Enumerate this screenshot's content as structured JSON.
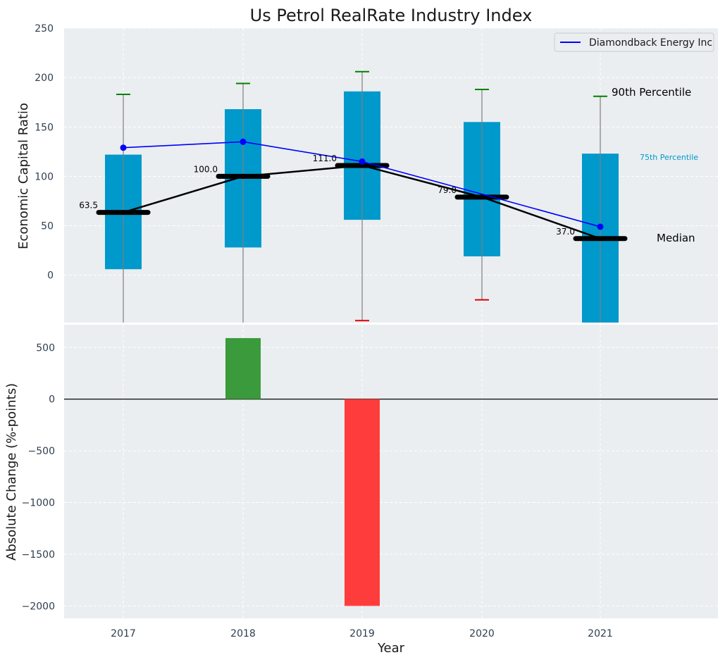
{
  "chart_data": {
    "title": "Us Petrol RealRate Industry Index",
    "xlabel": "Year",
    "categories": [
      "2017",
      "2018",
      "2019",
      "2020",
      "2021"
    ],
    "top_panel": {
      "type": "box",
      "ylabel": "Economic Capital Ratio",
      "ylim": [
        -48,
        250
      ],
      "yticks": [
        0,
        50,
        100,
        150,
        200,
        250
      ],
      "grid": true,
      "boxes": [
        {
          "year": "2017",
          "p10": -48,
          "p25": 6,
          "median": 63.5,
          "p75": 122,
          "p90": 183,
          "p10_color": "#7f7f7f",
          "p90_color": "#008000",
          "median_label": "63.5"
        },
        {
          "year": "2018",
          "p10": -48,
          "p25": 28,
          "median": 100.0,
          "p75": 168,
          "p90": 194,
          "p10_color": "#7f7f7f",
          "p90_color": "#008000",
          "median_label": "100.0"
        },
        {
          "year": "2019",
          "p10": -46,
          "p25": 56,
          "median": 111.0,
          "p75": 186,
          "p90": 206,
          "p10_color": "#e00000",
          "p90_color": "#008000",
          "median_label": "111.0"
        },
        {
          "year": "2020",
          "p10": -25,
          "p25": 19,
          "median": 79.0,
          "p75": 155,
          "p90": 188,
          "p10_color": "#e00000",
          "p90_color": "#008000",
          "median_label": "79.0"
        },
        {
          "year": "2021",
          "p10": -48,
          "p25": -48,
          "median": 37.0,
          "p75": 123,
          "p90": 181,
          "p10_color": "#7f7f7f",
          "p90_color": "#008000",
          "median_label": "37.0"
        }
      ],
      "series": [
        {
          "name": "Diamondback Energy Inc",
          "color": "#0000ff",
          "values": [
            129,
            135,
            115,
            null,
            49
          ]
        }
      ],
      "annotations": [
        {
          "text": "90th Percentile",
          "color": "#000000"
        },
        {
          "text": "75th Percentile",
          "color": "#0099cc"
        },
        {
          "text": "Median",
          "color": "#000000"
        }
      ],
      "legend": {
        "position": "top-right",
        "entries": [
          "Diamondback Energy Inc"
        ]
      }
    },
    "bottom_panel": {
      "type": "bar",
      "ylabel": "Absolute Change (%-points)",
      "ylim": [
        -2120,
        720
      ],
      "yticks": [
        500,
        0,
        -500,
        -1000,
        -1500,
        -2000
      ],
      "ytick_labels": [
        "500",
        "0",
        "−500",
        "−1000",
        "−1500",
        "−2000"
      ],
      "values": [
        null,
        590,
        -2000,
        null,
        null
      ],
      "positive_color": "#3b9a3b",
      "negative_color": "#ff3c3c",
      "grid": true
    },
    "colors": {
      "box": "#0099cc",
      "median": "#000000",
      "background": "#eaeef0"
    }
  }
}
